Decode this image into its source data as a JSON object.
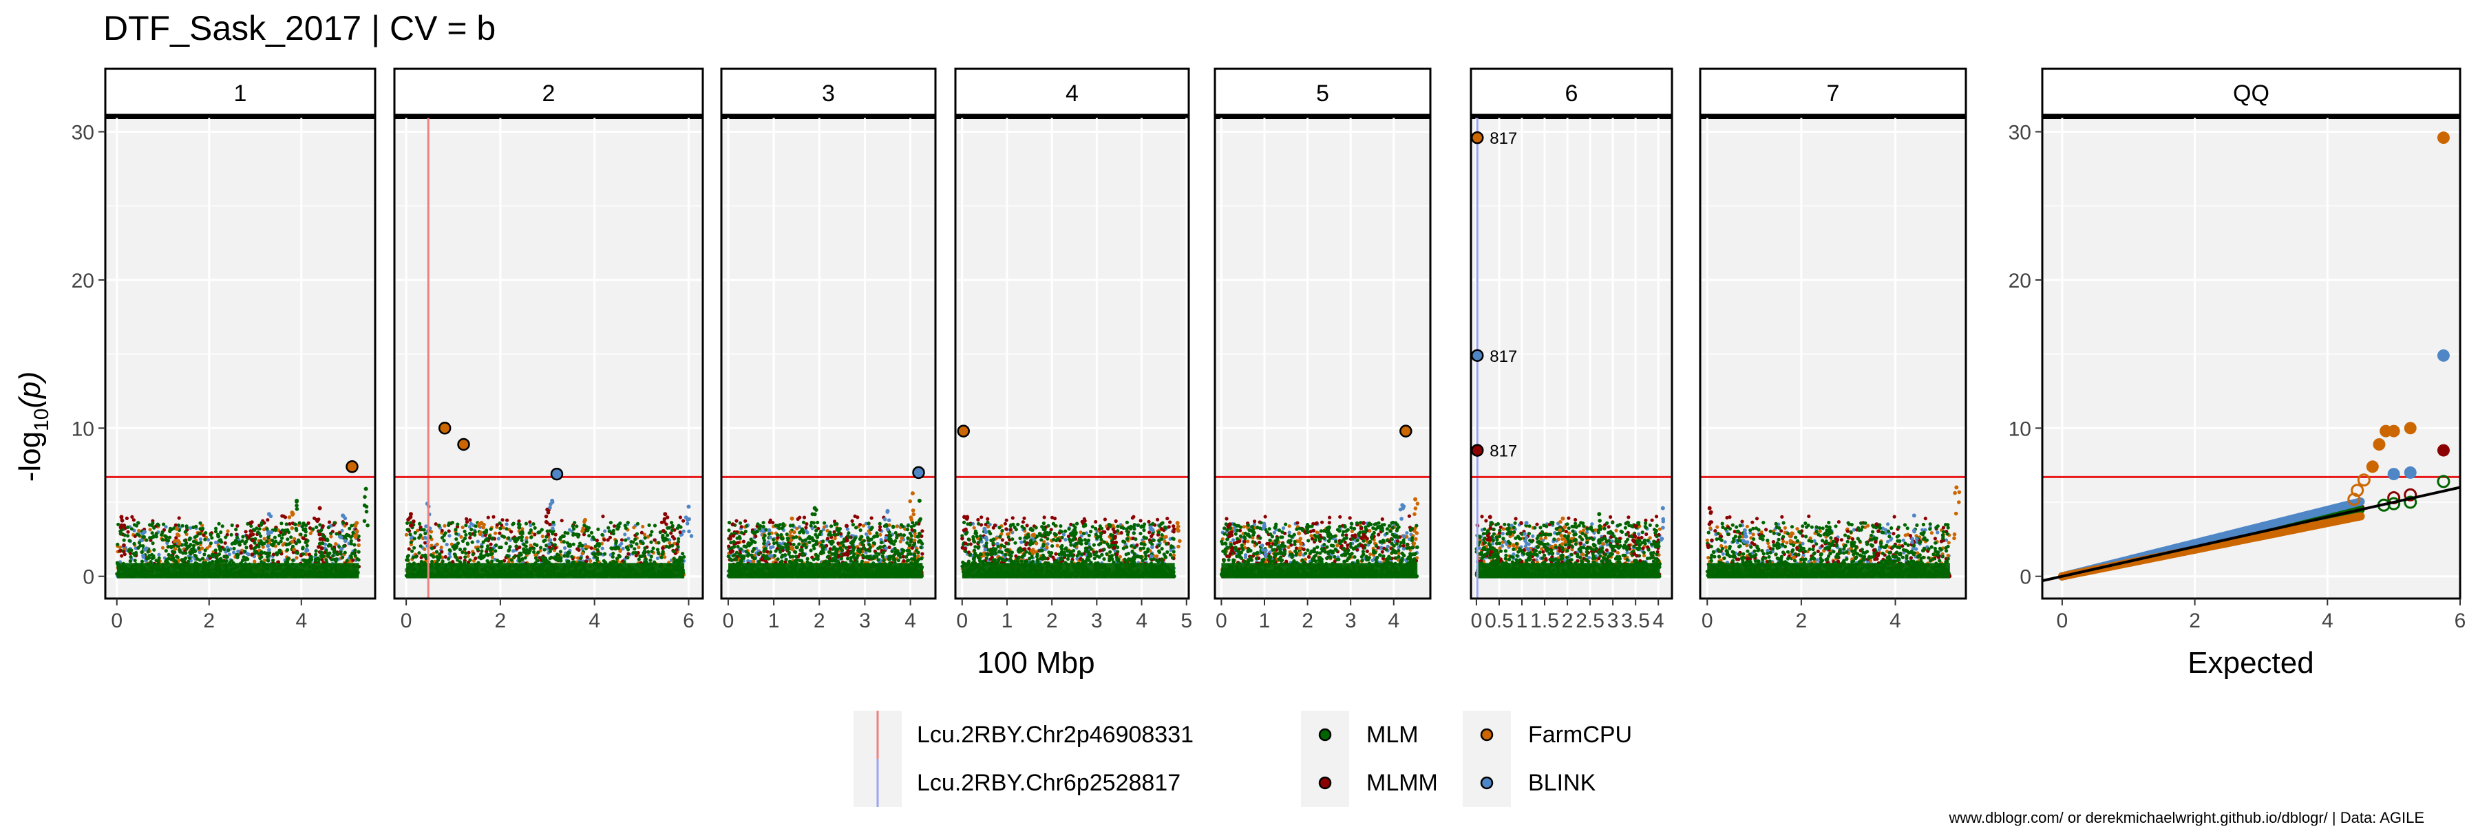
{
  "chart_data": {
    "type": "scatter",
    "title": "DTF_Sask_2017 | CV = b",
    "ylabel_main": "-log",
    "ylabel_sub": "10",
    "ylabel_paren": "(p)",
    "xlabel_manhattan": "100 Mbp",
    "xlabel_qq": "Expected",
    "ylim": [
      -1.5,
      31
    ],
    "y_ticks": [
      0,
      10,
      20,
      30
    ],
    "threshold": 6.7,
    "threshold_color": "#e8191b",
    "panel_bg": "#f2f2f2",
    "series_colors": {
      "MLM": "#006400",
      "MLMM": "#8b0000",
      "FarmCPU": "#cc6600",
      "BLINK": "#4f86c6"
    },
    "panels": [
      {
        "label": "1",
        "xlim": [
          -0.25,
          5.6
        ],
        "x_ticks": [
          0,
          2,
          4
        ],
        "background_points": [
          [
            0.1,
            4.0
          ],
          [
            0.6,
            3.0
          ],
          [
            1.3,
            3.2
          ],
          [
            2.2,
            2.7
          ],
          [
            2.9,
            3.6
          ],
          [
            3.3,
            4.2
          ],
          [
            3.8,
            4.3
          ],
          [
            3.9,
            5.1
          ],
          [
            4.4,
            4.6
          ],
          [
            4.9,
            4.1
          ],
          [
            5.2,
            3.6
          ],
          [
            5.4,
            5.9
          ]
        ],
        "highlights": [
          {
            "series": "FarmCPU",
            "x": 5.1,
            "y": 7.4
          }
        ],
        "markers": []
      },
      {
        "label": "2",
        "xlim": [
          -0.25,
          6.3
        ],
        "x_ticks": [
          0,
          2,
          4,
          6
        ],
        "background_points": [
          [
            0.1,
            4.2
          ],
          [
            0.45,
            4.9
          ],
          [
            1.6,
            3.6
          ],
          [
            2.4,
            3.3
          ],
          [
            3.0,
            4.5
          ],
          [
            3.1,
            5.1
          ],
          [
            3.8,
            3.8
          ],
          [
            4.5,
            3.4
          ],
          [
            5.5,
            4.2
          ],
          [
            6.0,
            4.7
          ]
        ],
        "highlights": [
          {
            "series": "FarmCPU",
            "x": 0.82,
            "y": 10.0
          },
          {
            "series": "FarmCPU",
            "x": 1.22,
            "y": 8.9
          },
          {
            "series": "BLINK",
            "x": 3.2,
            "y": 6.9
          }
        ],
        "markers": [
          {
            "x": 0.47,
            "color": "#f08080",
            "name": "Lcu.2RBY.Chr2p46908331"
          }
        ]
      },
      {
        "label": "3",
        "xlim": [
          -0.15,
          4.55
        ],
        "x_ticks": [
          0,
          1,
          2,
          3,
          4
        ],
        "background_points": [
          [
            0.1,
            3.5
          ],
          [
            0.9,
            3.1
          ],
          [
            1.4,
            3.9
          ],
          [
            1.9,
            4.6
          ],
          [
            2.6,
            3.4
          ],
          [
            3.5,
            4.4
          ],
          [
            4.05,
            5.6
          ],
          [
            4.2,
            5.1
          ]
        ],
        "highlights": [
          {
            "series": "BLINK",
            "x": 4.18,
            "y": 7.0
          }
        ],
        "markers": []
      },
      {
        "label": "4",
        "xlim": [
          -0.15,
          5.05
        ],
        "x_ticks": [
          0,
          1,
          2,
          3,
          4,
          5
        ],
        "background_points": [
          [
            0.05,
            4.0
          ],
          [
            0.5,
            3.2
          ],
          [
            1.6,
            2.8
          ],
          [
            2.5,
            3.1
          ],
          [
            3.4,
            3.0
          ],
          [
            4.2,
            3.3
          ],
          [
            4.8,
            3.6
          ]
        ],
        "highlights": [
          {
            "series": "FarmCPU",
            "x": 0.03,
            "y": 9.8
          }
        ],
        "markers": []
      },
      {
        "label": "5",
        "xlim": [
          -0.15,
          4.85
        ],
        "x_ticks": [
          0,
          1,
          2,
          3,
          4
        ],
        "background_points": [
          [
            0.2,
            3.5
          ],
          [
            1.0,
            3.4
          ],
          [
            1.8,
            2.9
          ],
          [
            2.5,
            3.3
          ],
          [
            3.3,
            3.6
          ],
          [
            4.2,
            4.8
          ],
          [
            4.5,
            5.2
          ]
        ],
        "highlights": [
          {
            "series": "FarmCPU",
            "x": 4.28,
            "y": 9.8
          }
        ],
        "markers": []
      },
      {
        "label": "6",
        "xlim": [
          -0.12,
          4.3
        ],
        "x_ticks": [
          0,
          0.5,
          1,
          1.5,
          2,
          2.5,
          3,
          3.5,
          4
        ],
        "x_tick_labels": [
          "0",
          "0.5",
          "1",
          "1.5",
          "2",
          "2.5",
          "3",
          "3.5",
          "4"
        ],
        "background_points": [
          [
            0.3,
            4.0
          ],
          [
            1.1,
            3.6
          ],
          [
            1.9,
            3.9
          ],
          [
            2.7,
            4.2
          ],
          [
            3.5,
            3.4
          ],
          [
            4.1,
            4.6
          ]
        ],
        "highlights": [
          {
            "series": "FarmCPU",
            "x": 0.02,
            "y": 29.6,
            "label": "817"
          },
          {
            "series": "BLINK",
            "x": 0.02,
            "y": 14.9,
            "label": "817"
          },
          {
            "series": "MLMM",
            "x": 0.02,
            "y": 8.5,
            "label": "817"
          }
        ],
        "markers": [
          {
            "x": 0.02,
            "color": "#9aa4f2",
            "name": "Lcu.2RBY.Chr6p2528817"
          }
        ]
      },
      {
        "label": "7",
        "xlim": [
          -0.15,
          5.5
        ],
        "x_ticks": [
          0,
          2,
          4
        ],
        "background_points": [
          [
            0.05,
            4.6
          ],
          [
            0.8,
            3.1
          ],
          [
            1.8,
            2.9
          ],
          [
            2.6,
            3.3
          ],
          [
            3.6,
            3.5
          ],
          [
            4.4,
            4.1
          ],
          [
            5.3,
            6.0
          ]
        ],
        "highlights": [],
        "markers": []
      }
    ],
    "qq": {
      "label": "QQ",
      "xlim": [
        -0.3,
        6.0
      ],
      "x_ticks": [
        0,
        2,
        4,
        6
      ],
      "filled_points": [
        {
          "series": "FarmCPU",
          "x": 5.75,
          "y": 29.6
        },
        {
          "series": "BLINK",
          "x": 5.75,
          "y": 14.9
        },
        {
          "series": "MLMM",
          "x": 5.75,
          "y": 8.5
        },
        {
          "series": "FarmCPU",
          "x": 5.25,
          "y": 10.0
        },
        {
          "series": "FarmCPU",
          "x": 5.0,
          "y": 9.8
        },
        {
          "series": "FarmCPU",
          "x": 4.88,
          "y": 9.8
        },
        {
          "series": "FarmCPU",
          "x": 4.78,
          "y": 8.9
        },
        {
          "series": "FarmCPU",
          "x": 4.68,
          "y": 7.4
        },
        {
          "series": "BLINK",
          "x": 5.25,
          "y": 7.0
        },
        {
          "series": "BLINK",
          "x": 5.0,
          "y": 6.9
        }
      ],
      "open_points": [
        {
          "series": "MLM",
          "x": 5.75,
          "y": 6.4
        },
        {
          "series": "MLMM",
          "x": 5.25,
          "y": 5.5
        },
        {
          "series": "MLM",
          "x": 5.25,
          "y": 5.0
        },
        {
          "series": "MLMM",
          "x": 5.0,
          "y": 5.3
        },
        {
          "series": "MLM",
          "x": 5.0,
          "y": 4.9
        },
        {
          "series": "MLM",
          "x": 4.85,
          "y": 4.8
        },
        {
          "series": "FarmCPU",
          "x": 4.55,
          "y": 6.5
        },
        {
          "series": "FarmCPU",
          "x": 4.45,
          "y": 5.8
        },
        {
          "series": "FarmCPU",
          "x": 4.4,
          "y": 5.2
        }
      ],
      "reference_line": {
        "x": [
          -0.3,
          6.0
        ],
        "y": [
          -0.3,
          6.0
        ]
      }
    },
    "legend": {
      "markers": [
        {
          "name": "Lcu.2RBY.Chr2p46908331",
          "color": "#f08080"
        },
        {
          "name": "Lcu.2RBY.Chr6p2528817",
          "color": "#9aa4f2"
        }
      ],
      "models": [
        {
          "name": "MLM",
          "color": "#006400"
        },
        {
          "name": "MLMM",
          "color": "#8b0000"
        },
        {
          "name": "FarmCPU",
          "color": "#cc6600"
        },
        {
          "name": "BLINK",
          "color": "#4f86c6"
        }
      ],
      "placement": "bottom"
    },
    "caption": "www.dblogr.com/ or derekmichaelwright.github.io/dblogr/ | Data: AGILE"
  }
}
